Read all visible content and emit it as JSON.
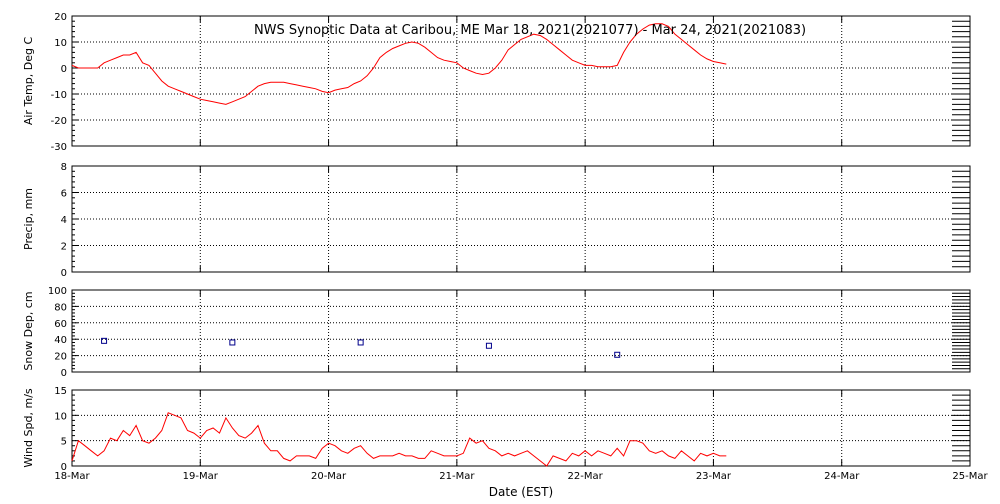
{
  "chart_data": {
    "title": "NWS Synoptic Data at Caribou, ME   Mar 18, 2021(2021077) - Mar 24, 2021(2021083)",
    "xlabel": "Date (EST)",
    "x_tick_labels": [
      "18-Mar",
      "19-Mar",
      "20-Mar",
      "21-Mar",
      "22-Mar",
      "23-Mar",
      "24-Mar",
      "25-Mar"
    ],
    "xlim": [
      0,
      7
    ],
    "grid": true,
    "panels": [
      {
        "key": "air_temp",
        "type": "line",
        "ylabel": "Air Temp, Deg C",
        "ylim": [
          -30,
          20
        ],
        "yticks": [
          -30,
          -20,
          -10,
          0,
          10,
          20
        ],
        "color": "#ff0000",
        "x": [
          0,
          0.05,
          0.1,
          0.15,
          0.2,
          0.25,
          0.3,
          0.35,
          0.4,
          0.45,
          0.5,
          0.55,
          0.6,
          0.65,
          0.7,
          0.75,
          0.8,
          0.85,
          0.9,
          0.95,
          1.0,
          1.05,
          1.1,
          1.15,
          1.2,
          1.25,
          1.3,
          1.35,
          1.4,
          1.45,
          1.5,
          1.55,
          1.6,
          1.65,
          1.7,
          1.75,
          1.8,
          1.85,
          1.9,
          1.95,
          2.0,
          2.05,
          2.1,
          2.15,
          2.2,
          2.25,
          2.3,
          2.35,
          2.4,
          2.45,
          2.5,
          2.55,
          2.6,
          2.65,
          2.7,
          2.75,
          2.8,
          2.85,
          2.9,
          2.95,
          3.0,
          3.05,
          3.1,
          3.15,
          3.2,
          3.25,
          3.3,
          3.35,
          3.4,
          3.45,
          3.5,
          3.55,
          3.6,
          3.65,
          3.7,
          3.75,
          3.8,
          3.85,
          3.9,
          3.95,
          4.0,
          4.05,
          4.1,
          4.15,
          4.2,
          4.25,
          4.3,
          4.35,
          4.4,
          4.45,
          4.5,
          4.55,
          4.6,
          4.65,
          4.7,
          4.75,
          4.8,
          4.85,
          4.9,
          4.95,
          5.0,
          5.05,
          5.1
        ],
        "y": [
          1,
          0,
          0,
          0,
          0,
          2,
          3,
          4,
          5,
          5,
          6,
          2,
          1,
          -2,
          -5,
          -7,
          -8,
          -9,
          -10,
          -11,
          -12,
          -12.5,
          -13,
          -13.5,
          -14,
          -13,
          -12,
          -11,
          -9,
          -7,
          -6,
          -5.5,
          -5.5,
          -5.5,
          -6,
          -6.5,
          -7,
          -7.5,
          -8,
          -9,
          -9.5,
          -8.5,
          -8,
          -7.5,
          -6,
          -5,
          -3,
          0,
          4,
          6,
          7.5,
          8.5,
          9.5,
          10,
          9.5,
          8,
          6,
          4,
          3,
          2.5,
          2,
          0,
          -1,
          -2,
          -2.5,
          -2,
          0,
          3,
          7,
          9,
          11,
          12,
          13,
          12.5,
          11,
          9,
          7,
          5,
          3,
          2,
          1,
          1,
          0.5,
          0.5,
          0.5,
          1,
          6,
          10,
          13,
          15,
          16.5,
          17,
          17,
          16,
          13,
          11,
          9,
          7,
          5,
          3.5,
          2.5,
          2,
          1.5
        ]
      },
      {
        "key": "precip",
        "type": "line",
        "ylabel": "Precip, mm",
        "ylim": [
          0,
          8
        ],
        "yticks": [
          0,
          2,
          4,
          6,
          8
        ],
        "x": [],
        "y": []
      },
      {
        "key": "snow_dep",
        "type": "scatter",
        "ylabel": "Snow Dep, cm",
        "ylim": [
          0,
          100
        ],
        "yticks": [
          0,
          20,
          40,
          60,
          80,
          100
        ],
        "color": "#00008b",
        "x": [
          0.25,
          1.25,
          2.25,
          3.25,
          4.25
        ],
        "y": [
          38,
          36,
          36,
          32,
          21
        ]
      },
      {
        "key": "wind_spd",
        "type": "line",
        "ylabel": "Wind Spd, m/s",
        "ylim": [
          0,
          15
        ],
        "yticks": [
          0,
          5,
          10,
          15
        ],
        "color": "#ff0000",
        "x": [
          0,
          0.05,
          0.1,
          0.15,
          0.2,
          0.25,
          0.3,
          0.35,
          0.4,
          0.45,
          0.5,
          0.55,
          0.6,
          0.65,
          0.7,
          0.75,
          0.8,
          0.85,
          0.9,
          0.95,
          1.0,
          1.05,
          1.1,
          1.15,
          1.2,
          1.25,
          1.3,
          1.35,
          1.4,
          1.45,
          1.5,
          1.55,
          1.6,
          1.65,
          1.7,
          1.75,
          1.8,
          1.85,
          1.9,
          1.95,
          2.0,
          2.05,
          2.1,
          2.15,
          2.2,
          2.25,
          2.3,
          2.35,
          2.4,
          2.45,
          2.5,
          2.55,
          2.6,
          2.65,
          2.7,
          2.75,
          2.8,
          2.85,
          2.9,
          2.95,
          3.0,
          3.05,
          3.1,
          3.15,
          3.2,
          3.25,
          3.3,
          3.35,
          3.4,
          3.45,
          3.5,
          3.55,
          3.6,
          3.65,
          3.7,
          3.75,
          3.8,
          3.85,
          3.9,
          3.95,
          4.0,
          4.05,
          4.1,
          4.15,
          4.2,
          4.25,
          4.3,
          4.35,
          4.4,
          4.45,
          4.5,
          4.55,
          4.6,
          4.65,
          4.7,
          4.75,
          4.8,
          4.85,
          4.9,
          4.95,
          5.0,
          5.05,
          5.1
        ],
        "y": [
          1,
          5,
          4,
          3,
          2,
          3,
          5.5,
          5,
          7,
          6,
          8,
          5,
          4.5,
          5.5,
          7,
          10.5,
          10,
          9.5,
          7,
          6.5,
          5.5,
          7,
          7.5,
          6.5,
          9.5,
          7.5,
          6,
          5.5,
          6.5,
          8,
          4.5,
          3,
          3,
          1.5,
          1,
          2,
          2,
          2,
          1.5,
          3.5,
          4.5,
          4,
          3,
          2.5,
          3.5,
          4,
          2.5,
          1.5,
          2,
          2,
          2,
          2.5,
          2,
          2,
          1.5,
          1.5,
          3,
          2.5,
          2,
          2,
          2,
          2.5,
          5.5,
          4.5,
          5,
          3.5,
          3,
          2,
          2.5,
          2,
          2.5,
          3,
          2,
          1,
          0,
          2,
          1.5,
          1,
          2.5,
          2,
          3,
          2,
          3,
          2.5,
          2,
          3.5,
          2,
          5,
          5,
          4.5,
          3,
          2.5,
          3,
          2,
          1.5,
          3,
          2,
          1,
          2.5,
          2,
          2.5,
          2,
          2
        ]
      }
    ]
  }
}
